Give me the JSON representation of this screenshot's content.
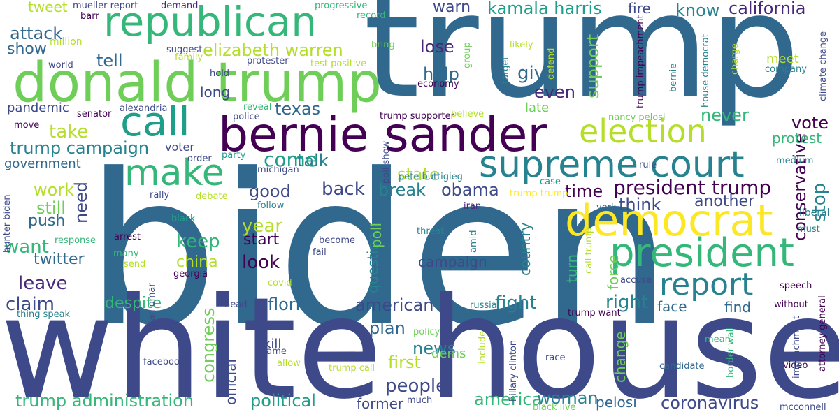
{
  "colors": {
    "background": "#ffffff",
    "palette": [
      "#440154",
      "#482878",
      "#3e4989",
      "#31688e",
      "#26828e",
      "#1f9e89",
      "#35b779",
      "#6ece58",
      "#b5de2b",
      "#fde725"
    ]
  },
  "words": [
    {
      "text": "biden",
      "color": "#31688e"
    },
    {
      "text": "trump",
      "color": "#31688e"
    },
    {
      "text": "white house",
      "color": "#3e4989"
    },
    {
      "text": "donald trump",
      "color": "#6ece58"
    },
    {
      "text": "bernie sander",
      "color": "#440154"
    },
    {
      "text": "republican",
      "color": "#35b779"
    },
    {
      "text": "democrat",
      "color": "#fde725"
    },
    {
      "text": "president",
      "color": "#35b779"
    },
    {
      "text": "supreme court",
      "color": "#26828e"
    },
    {
      "text": "election",
      "color": "#b5de2b"
    },
    {
      "text": "report",
      "color": "#26828e"
    },
    {
      "text": "call",
      "color": "#1f9e89"
    },
    {
      "text": "make",
      "color": "#35b779"
    },
    {
      "text": "president trump",
      "color": "#440154"
    },
    {
      "text": "kamala harris",
      "color": "#1f9e89"
    },
    {
      "text": "elizabeth warren",
      "color": "#b5de2b"
    },
    {
      "text": "trump campaign",
      "color": "#26828e"
    },
    {
      "text": "trump administration",
      "color": "#35b779"
    },
    {
      "text": "coronavirus",
      "color": "#3e4989"
    },
    {
      "text": "american",
      "color": "#3e4989"
    },
    {
      "text": "california",
      "color": "#482878"
    },
    {
      "text": "conservative",
      "color": "#440154"
    },
    {
      "text": "people",
      "color": "#3e4989"
    },
    {
      "text": "political",
      "color": "#1f9e89"
    },
    {
      "text": "america",
      "color": "#35b779"
    },
    {
      "text": "woman",
      "color": "#26828e"
    },
    {
      "text": "florida",
      "color": "#31688e"
    },
    {
      "text": "despite",
      "color": "#35b779"
    },
    {
      "text": "claim",
      "color": "#3e4989"
    },
    {
      "text": "fight",
      "color": "#26828e"
    },
    {
      "text": "right",
      "color": "#26828e"
    },
    {
      "text": "news",
      "color": "#26828e"
    },
    {
      "text": "first",
      "color": "#b5de2b"
    },
    {
      "text": "plan",
      "color": "#31688e"
    },
    {
      "text": "texas",
      "color": "#31688e"
    },
    {
      "text": "obama",
      "color": "#3e4989"
    },
    {
      "text": "good",
      "color": "#3e4989"
    },
    {
      "text": "back",
      "color": "#3e4989"
    },
    {
      "text": "break",
      "color": "#26828e"
    },
    {
      "text": "time",
      "color": "#440154"
    },
    {
      "text": "think",
      "color": "#3e4989"
    },
    {
      "text": "another",
      "color": "#3e4989"
    },
    {
      "text": "state",
      "color": "#b5de2b"
    },
    {
      "text": "talk",
      "color": "#26828e"
    },
    {
      "text": "come",
      "color": "#1f9e89"
    },
    {
      "text": "attack",
      "color": "#31688e"
    },
    {
      "text": "show",
      "color": "#31688e"
    },
    {
      "text": "tell",
      "color": "#31688e"
    },
    {
      "text": "take",
      "color": "#b5de2b"
    },
    {
      "text": "work",
      "color": "#b5de2b"
    },
    {
      "text": "still",
      "color": "#6ece58"
    },
    {
      "text": "push",
      "color": "#31688e"
    },
    {
      "text": "want",
      "color": "#35b779"
    },
    {
      "text": "twitter",
      "color": "#31688e"
    },
    {
      "text": "leave",
      "color": "#482878"
    },
    {
      "text": "keep",
      "color": "#35b779"
    },
    {
      "text": "year",
      "color": "#b5de2b"
    },
    {
      "text": "start",
      "color": "#440154"
    },
    {
      "text": "look",
      "color": "#440154"
    },
    {
      "text": "china",
      "color": "#b5de2b"
    },
    {
      "text": "warn",
      "color": "#3e4989"
    },
    {
      "text": "know",
      "color": "#26828e"
    },
    {
      "text": "fire",
      "color": "#3e4989"
    },
    {
      "text": "lose",
      "color": "#482878"
    },
    {
      "text": "help",
      "color": "#31688e"
    },
    {
      "text": "give",
      "color": "#31688e"
    },
    {
      "text": "even",
      "color": "#482878"
    },
    {
      "text": "late",
      "color": "#6ece58"
    },
    {
      "text": "never",
      "color": "#35b779"
    },
    {
      "text": "vote",
      "color": "#440154"
    },
    {
      "text": "protest",
      "color": "#35b779"
    },
    {
      "text": "meet",
      "color": "#b5de2b"
    },
    {
      "text": "face",
      "color": "#31688e"
    },
    {
      "text": "find",
      "color": "#31688e"
    },
    {
      "text": "campaign",
      "color": "#3e4989"
    },
    {
      "text": "former",
      "color": "#3e4989"
    },
    {
      "text": "pelosi",
      "color": "#31688e"
    },
    {
      "text": "long",
      "color": "#3e4989"
    },
    {
      "text": "pandemic",
      "color": "#3e4989"
    },
    {
      "text": "government",
      "color": "#31688e"
    },
    {
      "text": "dems",
      "color": "#6ece58"
    },
    {
      "text": "kill",
      "color": "#3e4989"
    },
    {
      "text": "tweet",
      "color": "#b5de2b"
    },
    {
      "text": "mueller report",
      "color": "#3e4989"
    },
    {
      "text": "demand",
      "color": "#482878"
    },
    {
      "text": "progressive",
      "color": "#35b779"
    },
    {
      "text": "record",
      "color": "#35b779"
    },
    {
      "text": "barr",
      "color": "#440154"
    },
    {
      "text": "million",
      "color": "#b5de2b"
    },
    {
      "text": "suggest",
      "color": "#3e4989"
    },
    {
      "text": "family",
      "color": "#b5de2b"
    },
    {
      "text": "world",
      "color": "#3e4989"
    },
    {
      "text": "bring",
      "color": "#6ece58"
    },
    {
      "text": "protester",
      "color": "#3e4989"
    },
    {
      "text": "test positive",
      "color": "#b5de2b"
    },
    {
      "text": "likely",
      "color": "#b5de2b"
    },
    {
      "text": "hold",
      "color": "#3e4989"
    },
    {
      "text": "reveal",
      "color": "#35b779"
    },
    {
      "text": "police",
      "color": "#3e4989"
    },
    {
      "text": "senator",
      "color": "#440154"
    },
    {
      "text": "alexandria",
      "color": "#3e4989"
    },
    {
      "text": "move",
      "color": "#440154"
    },
    {
      "text": "economy",
      "color": "#440154"
    },
    {
      "text": "trump supporter",
      "color": "#440154"
    },
    {
      "text": "believe",
      "color": "#b5de2b"
    },
    {
      "text": "nancy pelosi",
      "color": "#6ece58"
    },
    {
      "text": "voter",
      "color": "#3e4989"
    },
    {
      "text": "order",
      "color": "#3e4989"
    },
    {
      "text": "party",
      "color": "#1f9e89"
    },
    {
      "text": "michigan",
      "color": "#3e4989"
    },
    {
      "text": "pete buttigieg",
      "color": "#26828e"
    },
    {
      "text": "medium",
      "color": "#26828e"
    },
    {
      "text": "rule",
      "color": "#3e4989"
    },
    {
      "text": "case",
      "color": "#1f9e89"
    },
    {
      "text": "trump trump",
      "color": "#fde725"
    },
    {
      "text": "rally",
      "color": "#3e4989"
    },
    {
      "text": "debate",
      "color": "#b5de2b"
    },
    {
      "text": "follow",
      "color": "#26828e"
    },
    {
      "text": "iran",
      "color": "#482878"
    },
    {
      "text": "york",
      "color": "#31688e"
    },
    {
      "text": "black",
      "color": "#1f9e89"
    },
    {
      "text": "threat",
      "color": "#26828e"
    },
    {
      "text": "liberal",
      "color": "#26828e"
    },
    {
      "text": "must",
      "color": "#26828e"
    },
    {
      "text": "arrest",
      "color": "#440154"
    },
    {
      "text": "response",
      "color": "#35b779"
    },
    {
      "text": "become",
      "color": "#3e4989"
    },
    {
      "text": "many",
      "color": "#35b779"
    },
    {
      "text": "fail",
      "color": "#3e4989"
    },
    {
      "text": "send",
      "color": "#b5de2b"
    },
    {
      "text": "georgia",
      "color": "#440154"
    },
    {
      "text": "covid",
      "color": "#b5de2b"
    },
    {
      "text": "accuse",
      "color": "#3e4989"
    },
    {
      "text": "speech",
      "color": "#440154"
    },
    {
      "text": "head",
      "color": "#3e4989"
    },
    {
      "text": "russia",
      "color": "#26828e"
    },
    {
      "text": "trump want",
      "color": "#440154"
    },
    {
      "text": "without",
      "color": "#440154"
    },
    {
      "text": "thing speak",
      "color": "#26828e"
    },
    {
      "text": "policy",
      "color": "#6ece58"
    },
    {
      "text": "facebook",
      "color": "#3e4989"
    },
    {
      "text": "name",
      "color": "#3e4989"
    },
    {
      "text": "allow",
      "color": "#b5de2b"
    },
    {
      "text": "trump call",
      "color": "#b5de2b"
    },
    {
      "text": "mean",
      "color": "#35b779"
    },
    {
      "text": "race",
      "color": "#3e4989"
    },
    {
      "text": "candidate",
      "color": "#31688e"
    },
    {
      "text": "video",
      "color": "#440154"
    },
    {
      "text": "much",
      "color": "#3e4989"
    },
    {
      "text": "black live",
      "color": "#6ece58"
    },
    {
      "text": "mcconnell",
      "color": "#3e4989"
    },
    {
      "text": "company",
      "color": "#26828e"
    },
    {
      "text": "support",
      "color": "#6ece58"
    },
    {
      "text": "need",
      "color": "#3e4989"
    },
    {
      "text": "congress",
      "color": "#6ece58"
    },
    {
      "text": "question",
      "color": "#26828e"
    },
    {
      "text": "poll",
      "color": "#6ece58"
    },
    {
      "text": "official",
      "color": "#3e4989"
    },
    {
      "text": "country",
      "color": "#26828e"
    },
    {
      "text": "turn",
      "color": "#35b779"
    },
    {
      "text": "force",
      "color": "#6ece58"
    },
    {
      "text": "change",
      "color": "#6ece58"
    },
    {
      "text": "stop",
      "color": "#26828e"
    },
    {
      "text": "poll show",
      "color": "#3e4989"
    },
    {
      "text": "group",
      "color": "#6ece58"
    },
    {
      "text": "target",
      "color": "#26828e"
    },
    {
      "text": "defend",
      "color": "#b5de2b"
    },
    {
      "text": "trump impeachment",
      "color": "#440154"
    },
    {
      "text": "house democrat",
      "color": "#26828e"
    },
    {
      "text": "bernie",
      "color": "#26828e"
    },
    {
      "text": "charge",
      "color": "#b5de2b"
    },
    {
      "text": "climate change",
      "color": "#3e4989"
    },
    {
      "text": "hunter biden",
      "color": "#3e4989"
    },
    {
      "text": "ilhan omar",
      "color": "#3e4989"
    },
    {
      "text": "amid",
      "color": "#26828e"
    },
    {
      "text": "call trump",
      "color": "#b5de2b"
    },
    {
      "text": "include",
      "color": "#b5de2b"
    },
    {
      "text": "hillary clinton",
      "color": "#3e4989"
    },
    {
      "text": "border wall",
      "color": "#35b779"
    },
    {
      "text": "impeachment",
      "color": "#3e4989"
    },
    {
      "text": "attorney general",
      "color": "#440154"
    }
  ]
}
